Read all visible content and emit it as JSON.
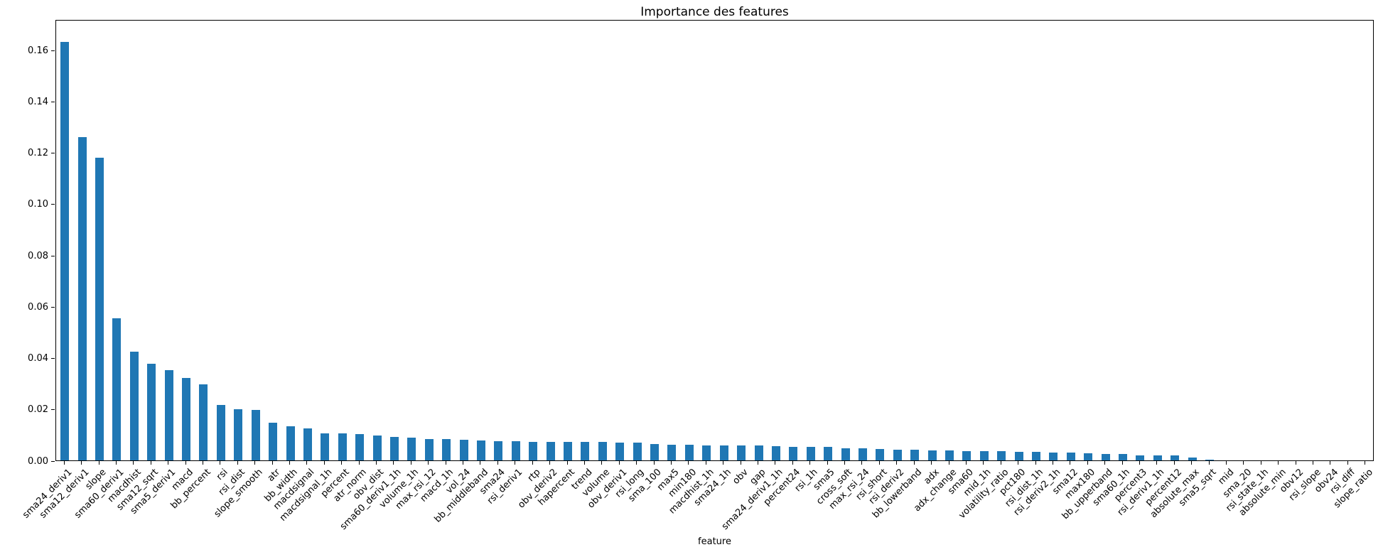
{
  "chart_data": {
    "type": "bar",
    "title": "Importance des features",
    "xlabel": "feature",
    "ylabel": "",
    "ylim": [
      0,
      0.172
    ],
    "yticks": [
      0.0,
      0.02,
      0.04,
      0.06,
      0.08,
      0.1,
      0.12,
      0.14,
      0.16
    ],
    "grid": false,
    "legend_position": "none",
    "bar_color": "#1f77b4",
    "x_tick_rotation_deg": 45,
    "categories": [
      "sma24_deriv1",
      "sma12_deriv1",
      "slope",
      "sma60_deriv1",
      "macdhist",
      "sma12_sqrt",
      "sma5_deriv1",
      "macd",
      "bb_percent",
      "rsi",
      "rsi_dist",
      "slope_smooth",
      "atr",
      "bb_width",
      "macdsignal",
      "macdsignal_1h",
      "percent",
      "atr_norm",
      "obv_dist",
      "sma60_deriv1_1h",
      "volume_1h",
      "max_rsi_12",
      "macd_1h",
      "vol_24",
      "bb_middleband",
      "sma24",
      "rsi_deriv1",
      "rtp",
      "obv_deriv2",
      "hapercent",
      "trend",
      "volume",
      "obv_deriv1",
      "rsi_long",
      "sma_100",
      "max5",
      "min180",
      "macdhist_1h",
      "sma24_1h",
      "obv",
      "gap",
      "sma24_deriv1_1h",
      "percent24",
      "rsi_1h",
      "sma5",
      "cross_soft",
      "max_rsi_24",
      "rsi_short",
      "rsi_deriv2",
      "bb_lowerband",
      "adx",
      "adx_change",
      "sma60",
      "mid_1h",
      "volatility_ratio",
      "pct180",
      "rsi_dist_1h",
      "rsi_deriv2_1h",
      "sma12",
      "max180",
      "bb_upperband",
      "sma60_1h",
      "percent3",
      "rsi_deriv1_1h",
      "percent12",
      "absolute_max",
      "sma5_sqrt",
      "mid",
      "sma_20",
      "rsi_state_1h",
      "absolute_min",
      "obv12",
      "rsi_slope",
      "obv24",
      "rsi_diff",
      "slope_ratio"
    ],
    "values": [
      0.163,
      0.126,
      0.118,
      0.0553,
      0.0423,
      0.0377,
      0.0351,
      0.0322,
      0.0296,
      0.0215,
      0.02,
      0.0198,
      0.0148,
      0.0132,
      0.0125,
      0.0105,
      0.0104,
      0.0103,
      0.0096,
      0.0091,
      0.0088,
      0.0084,
      0.0083,
      0.0079,
      0.0077,
      0.0076,
      0.0074,
      0.0073,
      0.0073,
      0.0072,
      0.0072,
      0.0071,
      0.007,
      0.0069,
      0.0065,
      0.0061,
      0.006,
      0.0059,
      0.0058,
      0.0058,
      0.0057,
      0.0056,
      0.0053,
      0.0053,
      0.0052,
      0.0048,
      0.0047,
      0.0045,
      0.0042,
      0.0041,
      0.0039,
      0.0038,
      0.0037,
      0.0036,
      0.0035,
      0.0033,
      0.0032,
      0.0031,
      0.003,
      0.0027,
      0.0026,
      0.0025,
      0.002,
      0.002,
      0.0019,
      0.0012,
      0.0004,
      0.0,
      0.0,
      0.0,
      0.0,
      0.0,
      0.0,
      0.0,
      0.0,
      0.0
    ]
  }
}
